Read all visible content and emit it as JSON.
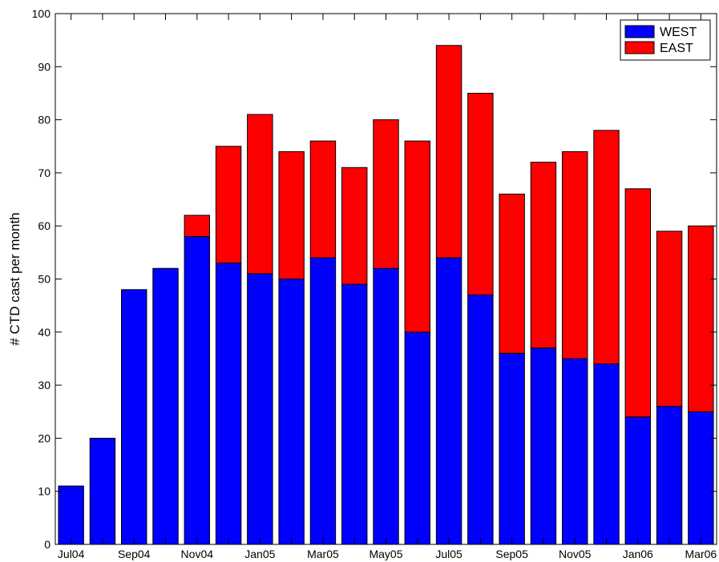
{
  "chart_data": {
    "type": "bar",
    "stacked": true,
    "title": "",
    "xlabel": "",
    "ylabel": "# CTD cast per month",
    "ylim": [
      0,
      100
    ],
    "yticks": [
      0,
      10,
      20,
      30,
      40,
      50,
      60,
      70,
      80,
      90,
      100
    ],
    "categories": [
      "Jul04",
      "Aug04",
      "Sep04",
      "Oct04",
      "Nov04",
      "Dec04",
      "Jan05",
      "Feb05",
      "Mar05",
      "Apr05",
      "May05",
      "Jun05",
      "Jul05",
      "Aug05",
      "Sep05",
      "Oct05",
      "Nov05",
      "Dec05",
      "Jan06",
      "Feb06",
      "Mar06"
    ],
    "xtick_labels": [
      "Jul04",
      "Sep04",
      "Nov04",
      "Jan05",
      "Mar05",
      "May05",
      "Jul05",
      "Sep05",
      "Nov05",
      "Jan06",
      "Mar06"
    ],
    "series": [
      {
        "name": "WEST",
        "color": "#0000ff",
        "values": [
          11,
          20,
          48,
          52,
          58,
          53,
          51,
          50,
          54,
          49,
          52,
          40,
          54,
          47,
          36,
          37,
          35,
          34,
          24,
          26,
          25
        ]
      },
      {
        "name": "EAST",
        "color": "#ff0000",
        "values": [
          0,
          0,
          0,
          0,
          4,
          22,
          30,
          24,
          22,
          22,
          28,
          36,
          40,
          38,
          30,
          35,
          39,
          44,
          43,
          33,
          35
        ]
      }
    ],
    "legend_position": "top-right",
    "grid": false
  }
}
